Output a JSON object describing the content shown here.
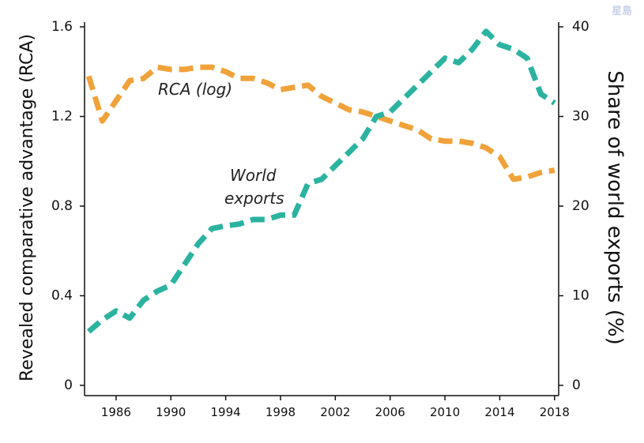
{
  "watermark": "星島",
  "chart_data": {
    "type": "line",
    "title": "",
    "xlabel": "",
    "ylabel_left": "Revealed comparative advantage (RCA)",
    "ylabel_right": "Share of world exports (%)",
    "xlim": [
      1983.7,
      2018.3
    ],
    "ylim_left": [
      0,
      1.6
    ],
    "ylim_right": [
      0,
      40
    ],
    "x_ticks": [
      1986,
      1990,
      1994,
      1998,
      2002,
      2006,
      2010,
      2014,
      2018
    ],
    "y_ticks_left": [
      "0",
      "0.4",
      "0.8",
      "1.2",
      "1.6"
    ],
    "y_ticks_right": [
      "0",
      "10",
      "20",
      "30",
      "40"
    ],
    "grid": false,
    "series": [
      {
        "name": "RCA (log)",
        "axis": "left",
        "color": "#f0a23a",
        "x": [
          1984,
          1985,
          1986,
          1987,
          1988,
          1989,
          1990,
          1991,
          1992,
          1993,
          1994,
          1995,
          1996,
          1997,
          1998,
          1999,
          2000,
          2001,
          2002,
          2003,
          2004,
          2005,
          2006,
          2007,
          2008,
          2009,
          2010,
          2011,
          2012,
          2013,
          2014,
          2015,
          2016,
          2017,
          2018
        ],
        "values": [
          1.38,
          1.18,
          1.27,
          1.36,
          1.37,
          1.42,
          1.41,
          1.41,
          1.42,
          1.42,
          1.4,
          1.37,
          1.37,
          1.35,
          1.32,
          1.33,
          1.34,
          1.29,
          1.26,
          1.23,
          1.22,
          1.2,
          1.18,
          1.16,
          1.14,
          1.1,
          1.09,
          1.09,
          1.08,
          1.06,
          1.02,
          0.92,
          0.93,
          0.95,
          0.96
        ]
      },
      {
        "name": "World exports",
        "axis": "right",
        "color": "#2bb3a0",
        "x": [
          1984,
          1985,
          1986,
          1987,
          1988,
          1989,
          1990,
          1991,
          1992,
          1993,
          1994,
          1995,
          1996,
          1997,
          1998,
          1999,
          2000,
          2001,
          2002,
          2003,
          2004,
          2005,
          2006,
          2007,
          2008,
          2009,
          2010,
          2011,
          2012,
          2013,
          2014,
          2015,
          2016,
          2017,
          2018
        ],
        "values": [
          6.0,
          7.3,
          8.3,
          7.5,
          9.5,
          10.5,
          11.2,
          13.5,
          15.8,
          17.5,
          17.8,
          18.0,
          18.5,
          18.5,
          19.0,
          19.0,
          22.5,
          23.0,
          24.5,
          26.0,
          27.5,
          30.0,
          30.5,
          32.0,
          33.5,
          35.0,
          36.5,
          36.0,
          37.5,
          39.5,
          38.0,
          37.5,
          36.5,
          32.5,
          31.5
        ]
      }
    ],
    "annotations": [
      {
        "text": "RCA (log)",
        "series": "RCA (log)"
      },
      {
        "text_line1": "World",
        "text_line2": "exports",
        "series": "World exports"
      }
    ]
  }
}
